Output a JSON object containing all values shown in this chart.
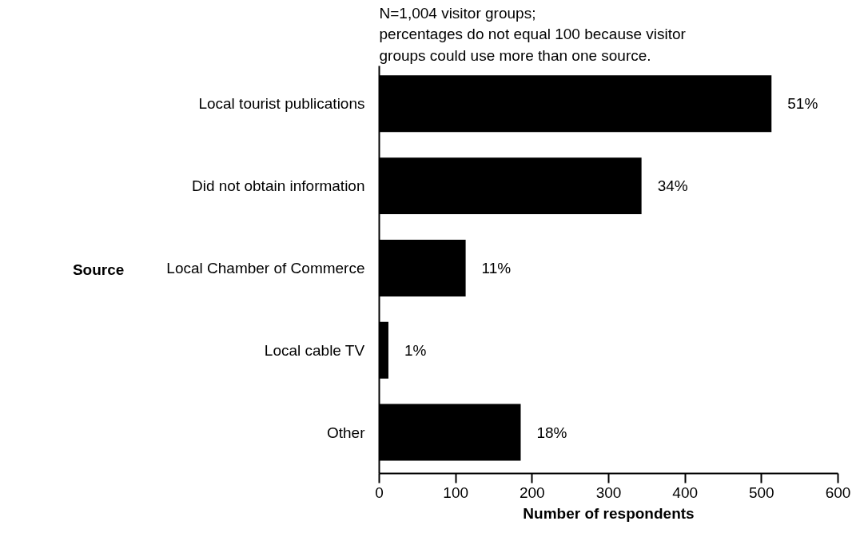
{
  "chart_data": {
    "type": "bar",
    "orientation": "horizontal",
    "annotations": [
      "N=1,004 visitor groups;\npercentages do not equal 100 because visitor\ngroups could use more than one source.",
      {
        "text": "51%",
        "x": 513,
        "y": "Local tourist publications"
      },
      {
        "text": "34%",
        "x": 343,
        "y": "Did not obtain information"
      },
      {
        "text": "11%",
        "x": 113,
        "y": "Local Chamber of Commerce"
      },
      {
        "text": "1%",
        "x": 12,
        "y": "Local cable TV"
      },
      {
        "text": "18%",
        "x": 185,
        "y": "Other"
      }
    ],
    "ylabel": "Source",
    "xlabel": "Number of respondents",
    "categories": [
      "Local tourist publications",
      "Did not obtain information",
      "Local Chamber of Commerce",
      "Local cable TV",
      "Other"
    ],
    "values": [
      513,
      343,
      113,
      12,
      185
    ],
    "color": "#000000",
    "xlim": [
      0,
      600
    ],
    "xticks": [
      0,
      100,
      200,
      300,
      400,
      500,
      600
    ],
    "grid": false
  }
}
